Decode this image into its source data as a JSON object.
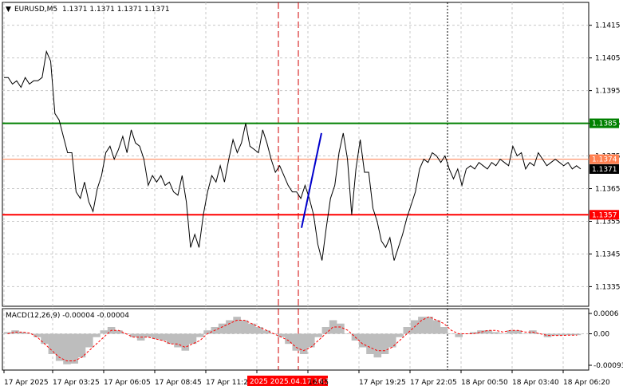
{
  "header": {
    "symbol_label": "EURUSD,M5",
    "ohlc": "1.1371 1.1371 1.1371 1.1371",
    "macd_label": "MACD(12,26,9) -0.00004 -0.00004"
  },
  "colors": {
    "price_line": "#000000",
    "grid": "#c8c8c8",
    "resistance": "#008000",
    "support": "#ff0000",
    "current": "#ff7f50",
    "trend": "#0000cc",
    "histogram": "#bdbdbd",
    "signal": "#ff0000",
    "highlight_tag_bg": "#ff0000",
    "current_tag_bg": "#000000"
  },
  "chart_data": [
    {
      "type": "line",
      "symbol": "EURUSD",
      "timeframe": "M5",
      "ylim": [
        1.1329,
        1.1422
      ],
      "y_ticks": [
        "1.1415",
        "1.1405",
        "1.1395",
        "1.1385",
        "1.1375",
        "1.1365",
        "1.1355",
        "1.1345",
        "1.1335"
      ],
      "x_ticks": [
        "17 Apr 2025",
        "17 Apr 03:25",
        "17 Apr 06:05",
        "17 Apr 08:45",
        "17 Apr 11:25",
        "2025.04.17 16:10",
        "16:45",
        "17 Apr 19:25",
        "17 Apr 22:05",
        "18 Apr 00:50",
        "18 Apr 03:40",
        "18 Apr 06:20"
      ],
      "highlighted_x_tick": "2025 2025.04.17 16:10",
      "series": [
        {
          "values": [
            1.1399,
            1.1399,
            1.1397,
            1.1398,
            1.1396,
            1.1399,
            1.1397,
            1.1398,
            1.1398,
            1.1399,
            1.1407,
            1.1404,
            1.1388,
            1.1386,
            1.1381,
            1.1376,
            1.1376,
            1.1364,
            1.1362,
            1.1367,
            1.1361,
            1.1358,
            1.1365,
            1.1369,
            1.1376,
            1.1378,
            1.1374,
            1.1377,
            1.1381,
            1.1376,
            1.1383,
            1.1379,
            1.1378,
            1.1374,
            1.1366,
            1.1369,
            1.1367,
            1.1369,
            1.1366,
            1.1367,
            1.1364,
            1.1363,
            1.1369,
            1.1361,
            1.1347,
            1.1351,
            1.1347,
            1.1357,
            1.1364,
            1.1369,
            1.1367,
            1.1372,
            1.1367,
            1.1374,
            1.138,
            1.1376,
            1.1379,
            1.1385,
            1.1378,
            1.1377,
            1.1376,
            1.1383,
            1.1379,
            1.1374,
            1.137,
            1.1372,
            1.1369,
            1.1366,
            1.1364,
            1.1364,
            1.1362,
            1.1366,
            1.1362,
            1.1357,
            1.1348,
            1.1343,
            1.1353,
            1.1362,
            1.1366,
            1.1376,
            1.1382,
            1.1374,
            1.1357,
            1.1371,
            1.138,
            1.137,
            1.137,
            1.1359,
            1.1355,
            1.1349,
            1.1347,
            1.135,
            1.1343,
            1.1347,
            1.1351,
            1.1356,
            1.136,
            1.1364,
            1.1371,
            1.1374,
            1.1373,
            1.1376,
            1.1375,
            1.1373,
            1.1375,
            1.1371,
            1.1368,
            1.1371,
            1.1366,
            1.1371,
            1.1372,
            1.1371,
            1.1373,
            1.1372,
            1.1371,
            1.1373,
            1.1372,
            1.1374,
            1.1373,
            1.1372,
            1.1378,
            1.1375,
            1.1376,
            1.1371,
            1.1373,
            1.1372,
            1.1376,
            1.1374,
            1.1372,
            1.1373,
            1.1374,
            1.1373,
            1.1372,
            1.1373,
            1.1371,
            1.1372,
            1.1371
          ]
        }
      ],
      "levels": [
        {
          "label": "1.1385",
          "value": 1.1385,
          "kind": "resistance"
        },
        {
          "label": "1.1374",
          "value": 1.1374,
          "kind": "current"
        },
        {
          "label": "1.1357",
          "value": 1.1357,
          "kind": "support"
        }
      ],
      "current_price": "1.1371",
      "trend_line": {
        "from": [
          1.1353
        ],
        "to": [
          1.1382
        ]
      },
      "vertical_markers": [
        "red-dashed",
        "red-dashed",
        "black-dotted"
      ]
    },
    {
      "type": "bar",
      "name": "MACD(12,26,9)",
      "ylim": [
        -0.00093,
        0.0006
      ],
      "y_ticks": [
        "0.0006",
        "0.00",
        "-0.00093"
      ],
      "values": [
        5e-05,
        0.0001,
        5e-05,
        0.0,
        -0.0001,
        -0.0003,
        -0.0006,
        -0.0008,
        -0.0009,
        -0.00088,
        -0.0007,
        -0.0004,
        -0.0001,
        0.0001,
        0.0002,
        0.0001,
        0.0,
        -0.0001,
        -0.0002,
        -0.0001,
        -0.00015,
        -0.0002,
        -0.0003,
        -0.0004,
        -0.0005,
        -0.0003,
        -0.0001,
        0.0001,
        0.0002,
        0.0003,
        0.0004,
        0.0005,
        0.0004,
        0.0003,
        0.0002,
        0.0001,
        0.0,
        -0.0001,
        -0.0003,
        -0.0005,
        -0.0006,
        -0.0004,
        -0.0001,
        0.0002,
        0.0004,
        0.0003,
        0.0,
        -0.0002,
        -0.0004,
        -0.0006,
        -0.0007,
        -0.0006,
        -0.0004,
        -0.0001,
        0.0002,
        0.0004,
        0.0005,
        0.0005,
        0.0004,
        0.0002,
        0.0,
        -0.0001,
        0.0,
        5e-05,
        0.0001,
        0.0001,
        5e-05,
        0.0,
        0.0001,
        0.0001,
        0.0,
        0.0001,
        0.0,
        -0.0001,
        -5e-05,
        -5e-05,
        -4e-05,
        -4e-05
      ],
      "signal": [
        0.0,
        5e-05,
        5e-05,
        2e-05,
        -0.0001,
        -0.0003,
        -0.0005,
        -0.0007,
        -0.0008,
        -0.0008,
        -0.0007,
        -0.0005,
        -0.0003,
        -0.0001,
        0.0001,
        0.0001,
        0.0,
        -0.0001,
        -0.0001,
        -0.0001,
        -0.00015,
        -0.0002,
        -0.0003,
        -0.0003,
        -0.0004,
        -0.0003,
        -0.0002,
        0.0,
        0.0001,
        0.0002,
        0.0003,
        0.0004,
        0.0004,
        0.0003,
        0.0002,
        0.0001,
        0.0,
        -0.0001,
        -0.0002,
        -0.0004,
        -0.0005,
        -0.0004,
        -0.0002,
        0.0,
        0.0002,
        0.0002,
        0.0001,
        -0.0001,
        -0.0003,
        -0.0004,
        -0.0005,
        -0.0005,
        -0.0004,
        -0.0002,
        0.0,
        0.0002,
        0.0004,
        0.0005,
        0.0004,
        0.0003,
        0.0001,
        0.0,
        0.0,
        0.0,
        5e-05,
        0.0001,
        0.0001,
        5e-05,
        0.0001,
        0.0001,
        5e-05,
        5e-05,
        0.0,
        -5e-05,
        -5e-05,
        -5e-05,
        -4e-05,
        -4e-05
      ]
    }
  ]
}
